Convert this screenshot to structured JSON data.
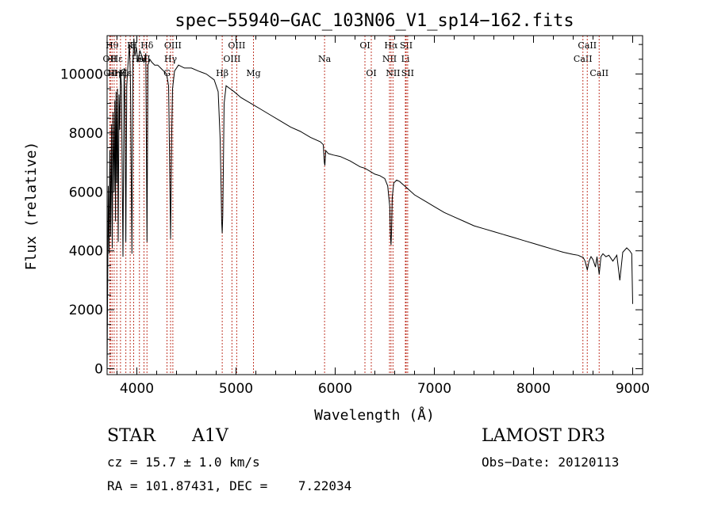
{
  "chart_data": {
    "type": "line",
    "title": "spec−55940−GAC_103N06_V1_sp14−162.fits",
    "xlabel": "Wavelength (Å)",
    "ylabel": "Flux (relative)",
    "xlim": [
      3700,
      9100
    ],
    "ylim": [
      -200,
      11300
    ],
    "xticks": [
      4000,
      5000,
      6000,
      7000,
      8000,
      9000
    ],
    "xtick_labels": [
      "4000",
      "5000",
      "6000",
      "7000",
      "8000",
      "9000"
    ],
    "yticks": [
      0,
      2000,
      4000,
      6000,
      8000,
      10000
    ],
    "ytick_labels": [
      "0",
      "2000",
      "4000",
      "6000",
      "8000",
      "10000"
    ],
    "series": [
      {
        "name": "flux",
        "x": [
          3700,
          3712,
          3720,
          3728,
          3735,
          3745,
          3752,
          3760,
          3770,
          3778,
          3785,
          3790,
          3797,
          3805,
          3812,
          3820,
          3828,
          3835,
          3845,
          3860,
          3872,
          3880,
          3889,
          3898,
          3910,
          3925,
          3935,
          3950,
          3960,
          3970,
          3980,
          3995,
          4010,
          4030,
          4050,
          4070,
          4090,
          4102,
          4112,
          4130,
          4150,
          4180,
          4210,
          4240,
          4270,
          4300,
          4320,
          4330,
          4340,
          4350,
          4360,
          4380,
          4420,
          4480,
          4550,
          4620,
          4700,
          4780,
          4820,
          4840,
          4850,
          4855,
          4861,
          4866,
          4872,
          4880,
          4900,
          4940,
          4980,
          5050,
          5150,
          5250,
          5350,
          5450,
          5550,
          5650,
          5750,
          5850,
          5880,
          5890,
          5896,
          5905,
          5930,
          5980,
          6050,
          6150,
          6250,
          6300,
          6350,
          6400,
          6450,
          6500,
          6530,
          6550,
          6558,
          6563,
          6568,
          6575,
          6590,
          6620,
          6650,
          6700,
          6750,
          6800,
          6900,
          7000,
          7100,
          7200,
          7300,
          7400,
          7500,
          7600,
          7700,
          7800,
          7900,
          8000,
          8100,
          8200,
          8300,
          8400,
          8450,
          8480,
          8500,
          8520,
          8542,
          8560,
          8580,
          8600,
          8625,
          8640,
          8662,
          8680,
          8700,
          8730,
          8760,
          8800,
          8840,
          8870,
          8900,
          8940,
          8970,
          8990,
          9000
        ],
        "y": [
          0,
          6200,
          3900,
          7400,
          4500,
          8300,
          4100,
          8700,
          6000,
          9100,
          5000,
          9400,
          6300,
          9500,
          4300,
          9300,
          8100,
          10100,
          9600,
          3800,
          10200,
          9000,
          4300,
          9600,
          10300,
          11000,
          9800,
          3900,
          10400,
          11200,
          10600,
          10900,
          10400,
          10800,
          10600,
          10400,
          10700,
          4300,
          10300,
          10500,
          10400,
          10300,
          10300,
          10200,
          10100,
          10000,
          9600,
          7000,
          4400,
          7800,
          9500,
          10100,
          10300,
          10200,
          10200,
          10100,
          10000,
          9800,
          9400,
          7800,
          6000,
          5000,
          4600,
          5200,
          6700,
          9000,
          9600,
          9500,
          9400,
          9200,
          9000,
          8800,
          8600,
          8400,
          8200,
          8050,
          7850,
          7700,
          7600,
          7000,
          6900,
          7400,
          7300,
          7250,
          7200,
          7050,
          6850,
          6800,
          6700,
          6600,
          6550,
          6450,
          6200,
          5500,
          4500,
          4200,
          4600,
          5800,
          6300,
          6400,
          6350,
          6200,
          6050,
          5900,
          5700,
          5500,
          5300,
          5150,
          5000,
          4850,
          4750,
          4650,
          4550,
          4450,
          4350,
          4250,
          4150,
          4050,
          3950,
          3880,
          3850,
          3800,
          3780,
          3650,
          3350,
          3650,
          3800,
          3700,
          3450,
          3800,
          3200,
          3800,
          3900,
          3800,
          3850,
          3650,
          3850,
          3000,
          3950,
          4100,
          4000,
          3900,
          2200
        ]
      }
    ],
    "lines": [
      {
        "x": 3727,
        "label": "OII",
        "row": 1
      },
      {
        "x": 3734,
        "label": "OII",
        "row": 2
      },
      {
        "x": 3750,
        "label": "Hθ",
        "row": 0
      },
      {
        "x": 3771,
        "label": "Hη",
        "row": 2
      },
      {
        "x": 3798,
        "label": "Hε",
        "row": 1
      },
      {
        "x": 3835,
        "label": "Hζ",
        "row": 2
      },
      {
        "x": 3889,
        "label": "Hε",
        "row": 2
      },
      {
        "x": 3933,
        "label": "K",
        "row": 0
      },
      {
        "x": 3968,
        "label": "H",
        "row": 0
      },
      {
        "x": 4026,
        "label": "HeI",
        "row": 1
      },
      {
        "x": 4072,
        "label": "SII",
        "row": 1
      },
      {
        "x": 4102,
        "label": "Hδ",
        "row": 0
      },
      {
        "x": 4304,
        "label": "G",
        "row": 2
      },
      {
        "x": 4340,
        "label": "Hγ",
        "row": 1
      },
      {
        "x": 4363,
        "label": "OIII",
        "row": 0
      },
      {
        "x": 4861,
        "label": "Hβ",
        "row": 2
      },
      {
        "x": 4959,
        "label": "OIII",
        "row": 1
      },
      {
        "x": 5007,
        "label": "OIII",
        "row": 0
      },
      {
        "x": 5176,
        "label": "Mg",
        "row": 2
      },
      {
        "x": 5893,
        "label": "Na",
        "row": 1
      },
      {
        "x": 6300,
        "label": "OI",
        "row": 0
      },
      {
        "x": 6364,
        "label": "OI",
        "row": 2
      },
      {
        "x": 6548,
        "label": "NII",
        "row": 1
      },
      {
        "x": 6563,
        "label": "Hα",
        "row": 0
      },
      {
        "x": 6583,
        "label": "NII",
        "row": 2
      },
      {
        "x": 6708,
        "label": "Li",
        "row": 1
      },
      {
        "x": 6716,
        "label": "SII",
        "row": 0
      },
      {
        "x": 6731,
        "label": "SII",
        "row": 2
      },
      {
        "x": 8498,
        "label": "CaII",
        "row": 1
      },
      {
        "x": 8542,
        "label": "CaII",
        "row": 0
      },
      {
        "x": 8662,
        "label": "CaII",
        "row": 2
      }
    ]
  },
  "info": {
    "object_class": "STAR",
    "subclass": "A1V",
    "survey": "LAMOST DR3",
    "cz": "cz = 15.7 ± 1.0 km/s",
    "obs_date": "Obs−Date: 20120113",
    "coords": "RA = 101.87431, DEC =    7.22034"
  }
}
